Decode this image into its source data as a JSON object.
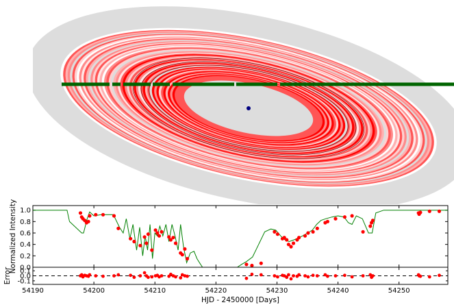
{
  "chart_data": [
    {
      "type": "ring-system-diagram",
      "colors": {
        "disk": "#dddddd",
        "rings_palette": [
          "#ff0000",
          "#ff5555",
          "#ff8a8a",
          "#ffb0b0",
          "#ffd0d0",
          "#ffe6e6",
          "#dddddd",
          "#ffffff"
        ],
        "inner_gap": "#dddddd",
        "star_track": "#006400",
        "planet": "#000080"
      },
      "grid": false
    },
    {
      "type": "line",
      "title": "",
      "xlabel": "",
      "ylabel": "Normalized Intensity",
      "xlim": [
        54190,
        54258
      ],
      "ylim": [
        0.0,
        1.08
      ],
      "yticks": [
        0.0,
        0.2,
        0.4,
        0.6,
        0.8,
        1.0
      ],
      "ytick_labels": [
        "0.0",
        "0.2",
        "0.4",
        "0.6",
        "0.8",
        "1.0"
      ],
      "series": [
        {
          "kind": "model",
          "color": "#008000",
          "x": [
            54190,
            54195.6,
            54196.0,
            54198.0,
            54198.3,
            54198.9,
            54199.3,
            54200.0,
            54201.2,
            54203.2,
            54204.2,
            54204.8,
            54205.3,
            54205.9,
            54206.4,
            54207.0,
            54207.5,
            54208.0,
            54208.4,
            54208.8,
            54209.2,
            54209.6,
            54210.0,
            54210.4,
            54210.8,
            54211.3,
            54211.8,
            54212.3,
            54212.8,
            54213.3,
            54213.8,
            54214.2,
            54214.7,
            54215.2,
            54215.8,
            54216.4,
            54216.9,
            54217.3,
            54217.8,
            54218.5,
            54219.5,
            54220.5,
            54221.5,
            54222.5,
            54223.5,
            54224.2,
            54225.0,
            54226.0,
            54227.0,
            54228.0,
            54229.0,
            54229.8,
            54230.6,
            54231.3,
            54232.0,
            54232.8,
            54233.6,
            54234.2,
            54235.0,
            54235.8,
            54236.5,
            54237.2,
            54238.0,
            54239.0,
            54240.0,
            54241.0,
            54241.7,
            54242.3,
            54243.0,
            54244.0,
            54245.0,
            54245.6,
            54246.2,
            54247.5,
            54250.0,
            54253.0,
            54256.0,
            54258.0
          ],
          "y": [
            1.0,
            1.0,
            0.8,
            0.6,
            0.6,
            0.85,
            0.97,
            0.9,
            0.92,
            0.92,
            0.7,
            0.6,
            0.85,
            0.5,
            0.75,
            0.3,
            0.7,
            0.2,
            0.55,
            0.3,
            0.75,
            0.15,
            0.6,
            0.55,
            0.72,
            0.55,
            0.75,
            0.45,
            0.75,
            0.55,
            0.3,
            0.75,
            0.35,
            0.08,
            0.25,
            0.28,
            0.15,
            0.08,
            0.0,
            -0.05,
            -0.05,
            -0.05,
            -0.05,
            -0.05,
            0.0,
            0.05,
            0.1,
            0.18,
            0.4,
            0.62,
            0.67,
            0.65,
            0.55,
            0.48,
            0.45,
            0.48,
            0.52,
            0.55,
            0.6,
            0.65,
            0.75,
            0.82,
            0.85,
            0.88,
            0.9,
            0.88,
            0.78,
            0.75,
            0.9,
            0.85,
            0.6,
            0.6,
            0.95,
            1.0,
            1.0,
            1.0,
            1.0,
            1.0
          ]
        },
        {
          "kind": "observations",
          "color": "#ff0000",
          "x": [
            54197.8,
            54198.0,
            54198.2,
            54198.5,
            54198.8,
            54199.1,
            54199.3,
            54200.3,
            54201.5,
            54203.3,
            54204.0,
            54206.0,
            54206.6,
            54207.6,
            54208.3,
            54208.6,
            54208.9,
            54209.5,
            54210.1,
            54210.4,
            54210.7,
            54211.1,
            54212.3,
            54212.6,
            54213.0,
            54213.4,
            54214.2,
            54214.5,
            54214.9,
            54215.3,
            54225.0,
            54225.9,
            54227.4,
            54229.6,
            54230.1,
            54230.9,
            54231.2,
            54231.6,
            54231.9,
            54232.3,
            54232.7,
            54233.3,
            54233.6,
            54234.6,
            54235.1,
            54235.9,
            54236.6,
            54237.9,
            54238.3,
            54239.6,
            54241.1,
            54242.3,
            54244.1,
            54245.3,
            54245.5,
            54245.7,
            54253.2,
            54253.3,
            54253.5,
            54255.0,
            54256.6
          ],
          "y": [
            0.95,
            0.88,
            0.85,
            0.82,
            0.78,
            0.8,
            0.9,
            0.92,
            0.92,
            0.9,
            0.68,
            0.5,
            0.45,
            0.38,
            0.53,
            0.42,
            0.58,
            0.3,
            0.65,
            0.6,
            0.55,
            0.62,
            0.53,
            0.48,
            0.52,
            0.42,
            0.25,
            0.22,
            0.32,
            0.15,
            0.05,
            0.03,
            0.07,
            0.62,
            0.58,
            0.5,
            0.52,
            0.48,
            0.4,
            0.36,
            0.42,
            0.48,
            0.52,
            0.55,
            0.6,
            0.62,
            0.68,
            0.78,
            0.8,
            0.85,
            0.88,
            0.9,
            0.62,
            0.72,
            0.78,
            0.82,
            0.95,
            0.93,
            0.96,
            0.98,
            0.98
          ]
        }
      ]
    },
    {
      "type": "scatter",
      "title": "",
      "xlabel": "HJD - 2450000 [Days]",
      "ylabel": "Error",
      "xlim": [
        54190,
        54258
      ],
      "ylim": [
        -0.17,
        0.17
      ],
      "yticks": [
        0.1,
        0.0,
        -0.1
      ],
      "ytick_labels": [
        "0.1",
        "0.0",
        "-0.1"
      ],
      "xticks": [
        54190,
        54200,
        54210,
        54220,
        54230,
        54240,
        54250
      ],
      "xtick_labels": [
        "54190",
        "54200",
        "54210",
        "54220",
        "54230",
        "54240",
        "54250"
      ],
      "reference_line": 0.0,
      "series": [
        {
          "kind": "residuals",
          "color": "#ff0000",
          "x": [
            54197.8,
            54198.0,
            54198.2,
            54198.5,
            54198.8,
            54199.1,
            54199.3,
            54200.3,
            54201.5,
            54203.3,
            54204.0,
            54206.0,
            54206.6,
            54207.6,
            54208.3,
            54208.6,
            54208.9,
            54209.5,
            54210.1,
            54210.4,
            54210.7,
            54211.1,
            54212.3,
            54212.6,
            54213.0,
            54213.4,
            54214.2,
            54214.5,
            54214.9,
            54215.3,
            54225.0,
            54225.9,
            54227.4,
            54229.6,
            54230.1,
            54230.9,
            54231.2,
            54231.6,
            54231.9,
            54232.3,
            54232.7,
            54233.3,
            54233.6,
            54234.6,
            54235.1,
            54235.9,
            54236.6,
            54237.9,
            54238.3,
            54239.6,
            54241.1,
            54242.3,
            54244.1,
            54245.3,
            54245.5,
            54245.7,
            54253.2,
            54253.3,
            54253.5,
            54255.0,
            54256.6
          ],
          "y": [
            0.0,
            0.02,
            -0.02,
            0.01,
            0.0,
            -0.01,
            0.02,
            0.0,
            -0.01,
            0.0,
            0.02,
            0.01,
            -0.03,
            0.0,
            0.06,
            0.0,
            -0.03,
            -0.02,
            0.0,
            0.01,
            -0.02,
            0.0,
            -0.01,
            0.03,
            0.0,
            -0.02,
            -0.04,
            0.02,
            0.0,
            -0.01,
            -0.05,
            0.03,
            0.02,
            0.0,
            -0.02,
            0.01,
            0.0,
            -0.03,
            0.02,
            -0.06,
            0.0,
            -0.01,
            0.02,
            0.0,
            -0.02,
            0.01,
            0.0,
            0.02,
            -0.01,
            0.0,
            0.01,
            -0.02,
            0.0,
            0.02,
            -0.03,
            0.0,
            0.02,
            0.0,
            -0.01,
            -0.02,
            0.01
          ]
        }
      ]
    }
  ]
}
